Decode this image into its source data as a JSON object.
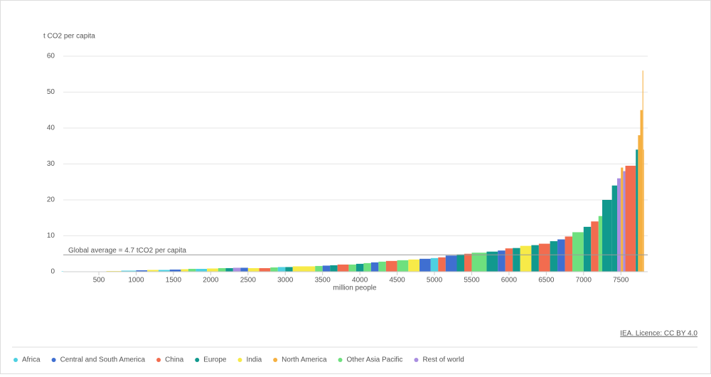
{
  "chart_data": {
    "type": "variable-width-bar",
    "y_axis_label": "t CO2 per capita",
    "x_axis_label": "million people",
    "source": "IEA. Licence: CC BY 4.0",
    "reference_line": {
      "value": 4.7,
      "label": "Global average = 4.7 tCO2 per capita",
      "color": "#999999"
    },
    "xlim": [
      0,
      7860
    ],
    "ylim": [
      0,
      60
    ],
    "xticks": [
      500,
      1000,
      1500,
      2000,
      2500,
      3000,
      3500,
      4000,
      4500,
      5000,
      5500,
      6000,
      6500,
      7000,
      7500
    ],
    "yticks": [
      0,
      10,
      20,
      30,
      40,
      50,
      60
    ],
    "grid": true,
    "legend": [
      {
        "name": "Africa",
        "color": "#4dd0e1"
      },
      {
        "name": "Central and South America",
        "color": "#3f6fd1"
      },
      {
        "name": "China",
        "color": "#f26c4f"
      },
      {
        "name": "Europe",
        "color": "#11998e"
      },
      {
        "name": "India",
        "color": "#f7ea48"
      },
      {
        "name": "North America",
        "color": "#f5b041"
      },
      {
        "name": "Other Asia Pacific",
        "color": "#6ee07e"
      },
      {
        "name": "Rest of world",
        "color": "#a98ee0"
      }
    ],
    "edges": [
      0,
      600,
      800,
      1000,
      1150,
      1300,
      1450,
      1600,
      1700,
      1800,
      1950,
      2100,
      2200,
      2300,
      2400,
      2500,
      2650,
      2800,
      2900,
      3000,
      3100,
      3250,
      3400,
      3500,
      3600,
      3700,
      3850,
      3950,
      4050,
      4150,
      4250,
      4350,
      4500,
      4650,
      4800,
      4950,
      5050,
      5150,
      5300,
      5400,
      5500,
      5700,
      5850,
      5950,
      6050,
      6150,
      6300,
      6400,
      6550,
      6650,
      6750,
      6850,
      7000,
      7100,
      7200,
      7250,
      7380,
      7450,
      7500,
      7530,
      7560,
      7700,
      7730,
      7760,
      7790,
      7800,
      7810
    ],
    "values": [
      0.1,
      0.2,
      0.3,
      0.4,
      0.5,
      0.5,
      0.6,
      0.7,
      0.8,
      0.8,
      0.9,
      1.0,
      1.0,
      1.1,
      1.1,
      1.0,
      1.0,
      1.2,
      1.3,
      1.3,
      1.5,
      1.5,
      1.6,
      1.7,
      1.8,
      2.0,
      2.0,
      2.2,
      2.4,
      2.6,
      2.8,
      3.0,
      3.2,
      3.4,
      3.6,
      3.8,
      4.0,
      4.5,
      4.8,
      5.0,
      5.3,
      5.6,
      5.9,
      6.5,
      6.6,
      7.2,
      7.4,
      7.8,
      8.5,
      9.0,
      9.8,
      11.0,
      12.5,
      14.0,
      15.5,
      20.0,
      24.0,
      26.0,
      29.0,
      28.0,
      29.5,
      34.0,
      38.0,
      45.0,
      56.0,
      34.0
    ],
    "regions": [
      "Africa",
      "India",
      "Africa",
      "Central and South America",
      "India",
      "Africa",
      "Central and South America",
      "India",
      "Other Asia Pacific",
      "Africa",
      "India",
      "Other Asia Pacific",
      "Europe",
      "Rest of world",
      "Central and South America",
      "India",
      "China",
      "Other Asia Pacific",
      "Africa",
      "Europe",
      "India",
      "India",
      "Other Asia Pacific",
      "Central and South America",
      "Europe",
      "China",
      "Other Asia Pacific",
      "Europe",
      "Other Asia Pacific",
      "Central and South America",
      "Other Asia Pacific",
      "China",
      "Other Asia Pacific",
      "India",
      "Central and South America",
      "Africa",
      "China",
      "Central and South America",
      "Europe",
      "China",
      "Other Asia Pacific",
      "Europe",
      "Central and South America",
      "China",
      "Europe",
      "India",
      "Europe",
      "China",
      "Europe",
      "Central and South America",
      "China",
      "Other Asia Pacific",
      "Europe",
      "China",
      "Other Asia Pacific",
      "Europe",
      "Europe",
      "Rest of world",
      "North America",
      "Rest of world",
      "China",
      "Europe",
      "North America",
      "North America",
      "North America",
      "North America"
    ]
  }
}
